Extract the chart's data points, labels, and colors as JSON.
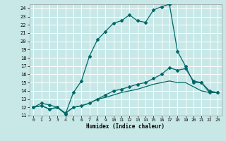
{
  "xlabel": "Humidex (Indice chaleur)",
  "xlim": [
    -0.5,
    23.5
  ],
  "ylim": [
    11,
    24.5
  ],
  "yticks": [
    11,
    12,
    13,
    14,
    15,
    16,
    17,
    18,
    19,
    20,
    21,
    22,
    23,
    24
  ],
  "xticks": [
    0,
    1,
    2,
    3,
    4,
    5,
    6,
    7,
    8,
    9,
    10,
    11,
    12,
    13,
    14,
    15,
    16,
    17,
    18,
    19,
    20,
    21,
    22,
    23
  ],
  "bg_color": "#c8e8e8",
  "grid_color": "#ffffff",
  "line_color": "#006868",
  "line1_x": [
    0,
    1,
    2,
    3,
    4,
    5,
    6,
    7,
    8,
    9,
    10,
    11,
    12,
    13,
    14,
    15,
    16,
    17,
    18,
    19,
    20,
    21,
    22,
    23
  ],
  "line1_y": [
    12,
    12.5,
    12.3,
    12,
    11.2,
    13.8,
    15.2,
    18.2,
    20.2,
    21.2,
    22.2,
    22.5,
    23.2,
    22.5,
    22.3,
    23.8,
    24.2,
    24.5,
    18.8,
    17.0,
    15.0,
    15.0,
    13.8,
    13.8
  ],
  "line2_x": [
    0,
    1,
    2,
    3,
    4,
    5,
    6,
    7,
    8,
    9,
    10,
    11,
    12,
    13,
    14,
    15,
    16,
    17,
    18,
    19,
    20,
    21,
    22,
    23
  ],
  "line2_y": [
    12,
    12.2,
    11.8,
    12,
    11.3,
    12.0,
    12.2,
    12.5,
    13.0,
    13.5,
    14.0,
    14.2,
    14.5,
    14.8,
    15.0,
    15.5,
    16.0,
    16.8,
    16.5,
    16.7,
    15.2,
    15.0,
    14.0,
    13.8
  ],
  "line3_x": [
    0,
    1,
    2,
    3,
    4,
    5,
    6,
    7,
    8,
    9,
    10,
    11,
    12,
    13,
    14,
    15,
    16,
    17,
    18,
    19,
    20,
    21,
    22,
    23
  ],
  "line3_y": [
    12,
    12.2,
    11.8,
    12.0,
    11.3,
    12.0,
    12.2,
    12.5,
    13.0,
    13.2,
    13.5,
    13.8,
    14.0,
    14.2,
    14.5,
    14.8,
    15.0,
    15.2,
    15.0,
    15.0,
    14.5,
    14.0,
    13.8,
    13.8
  ]
}
